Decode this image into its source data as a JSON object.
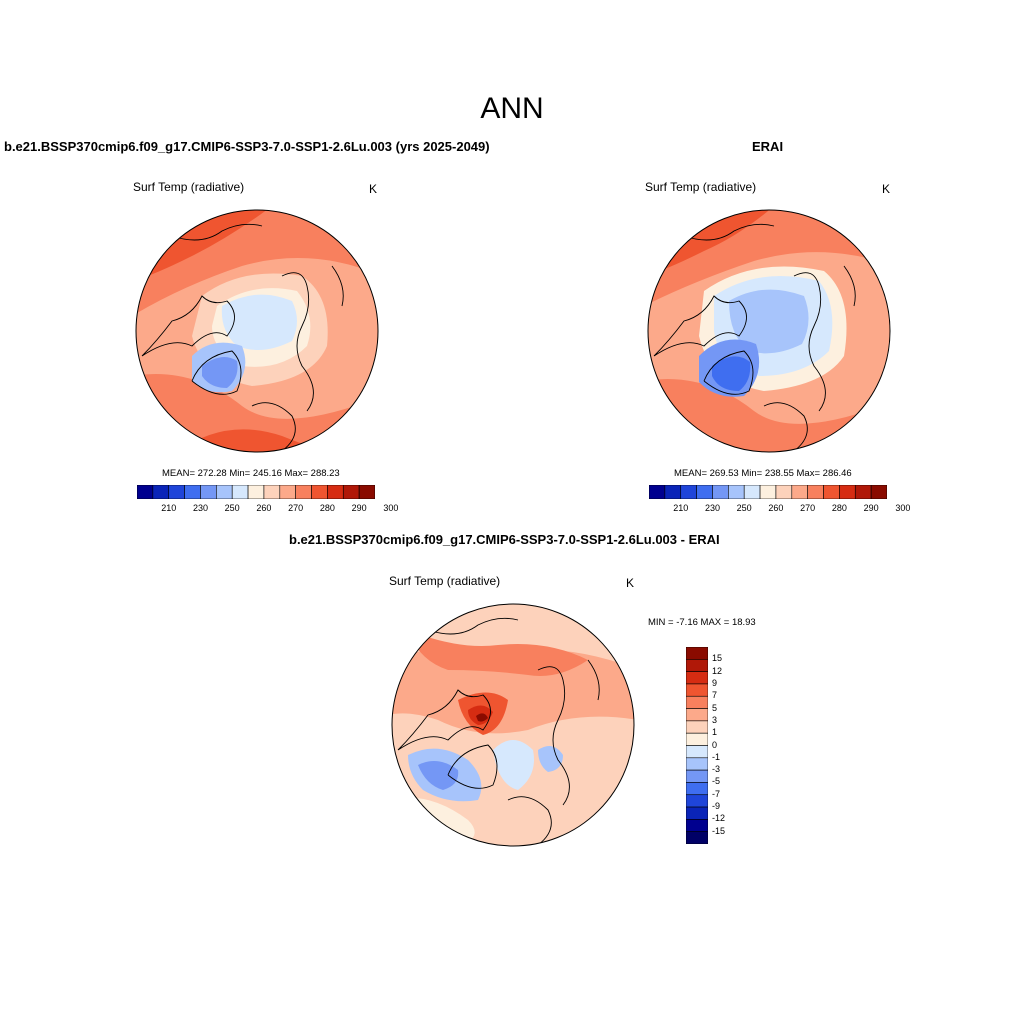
{
  "figure": {
    "season": "ANN"
  },
  "panels": {
    "model": {
      "title": "b.e21.BSSP370cmip6.f09_g17.CMIP6-SSP3-7.0-SSP1-2.6Lu.003 (yrs 2025-2049)",
      "variable": "Surf Temp (radiative)",
      "units": "K",
      "stats": "MEAN= 272.28  Min= 245.16  Max= 288.23",
      "mean": 272.28,
      "min": 245.16,
      "max": 288.23
    },
    "obs": {
      "title": "ERAI",
      "variable": "Surf Temp (radiative)",
      "units": "K",
      "stats": "MEAN= 269.53  Min= 238.55  Max= 286.46",
      "mean": 269.53,
      "min": 238.55,
      "max": 286.46
    },
    "diff": {
      "title": "b.e21.BSSP370cmip6.f09_g17.CMIP6-SSP3-7.0-SSP1-2.6Lu.003 - ERAI",
      "variable": "Surf Temp (radiative)",
      "units": "K",
      "stats": "MIN =  -7.16 MAX =  18.93",
      "min": -7.16,
      "max": 18.93
    }
  },
  "abs_colorbar": {
    "labels": [
      "210",
      "230",
      "250",
      "260",
      "270",
      "280",
      "290",
      "300"
    ],
    "colors": [
      "#00008f",
      "#0a24b8",
      "#1f45d9",
      "#3f6ef0",
      "#7497f5",
      "#a7c4fb",
      "#d6e8fd",
      "#fdf0df",
      "#fdd2bb",
      "#fca98a",
      "#f8805e",
      "#ef5530",
      "#d62c12",
      "#b01808",
      "#8a0b00"
    ]
  },
  "diff_colorbar": {
    "labels": [
      "15",
      "12",
      "9",
      "7",
      "5",
      "3",
      "1",
      "0",
      "-1",
      "-3",
      "-5",
      "-7",
      "-9",
      "-12",
      "-15"
    ],
    "colors": [
      "#8a0b00",
      "#b01808",
      "#d62c12",
      "#ef5530",
      "#f8805e",
      "#fca98a",
      "#fdd2bb",
      "#fdf0df",
      "#d6e8fd",
      "#a7c4fb",
      "#7497f5",
      "#3f6ef0",
      "#1f45d9",
      "#0a24b8",
      "#00008f",
      "#000066"
    ]
  }
}
